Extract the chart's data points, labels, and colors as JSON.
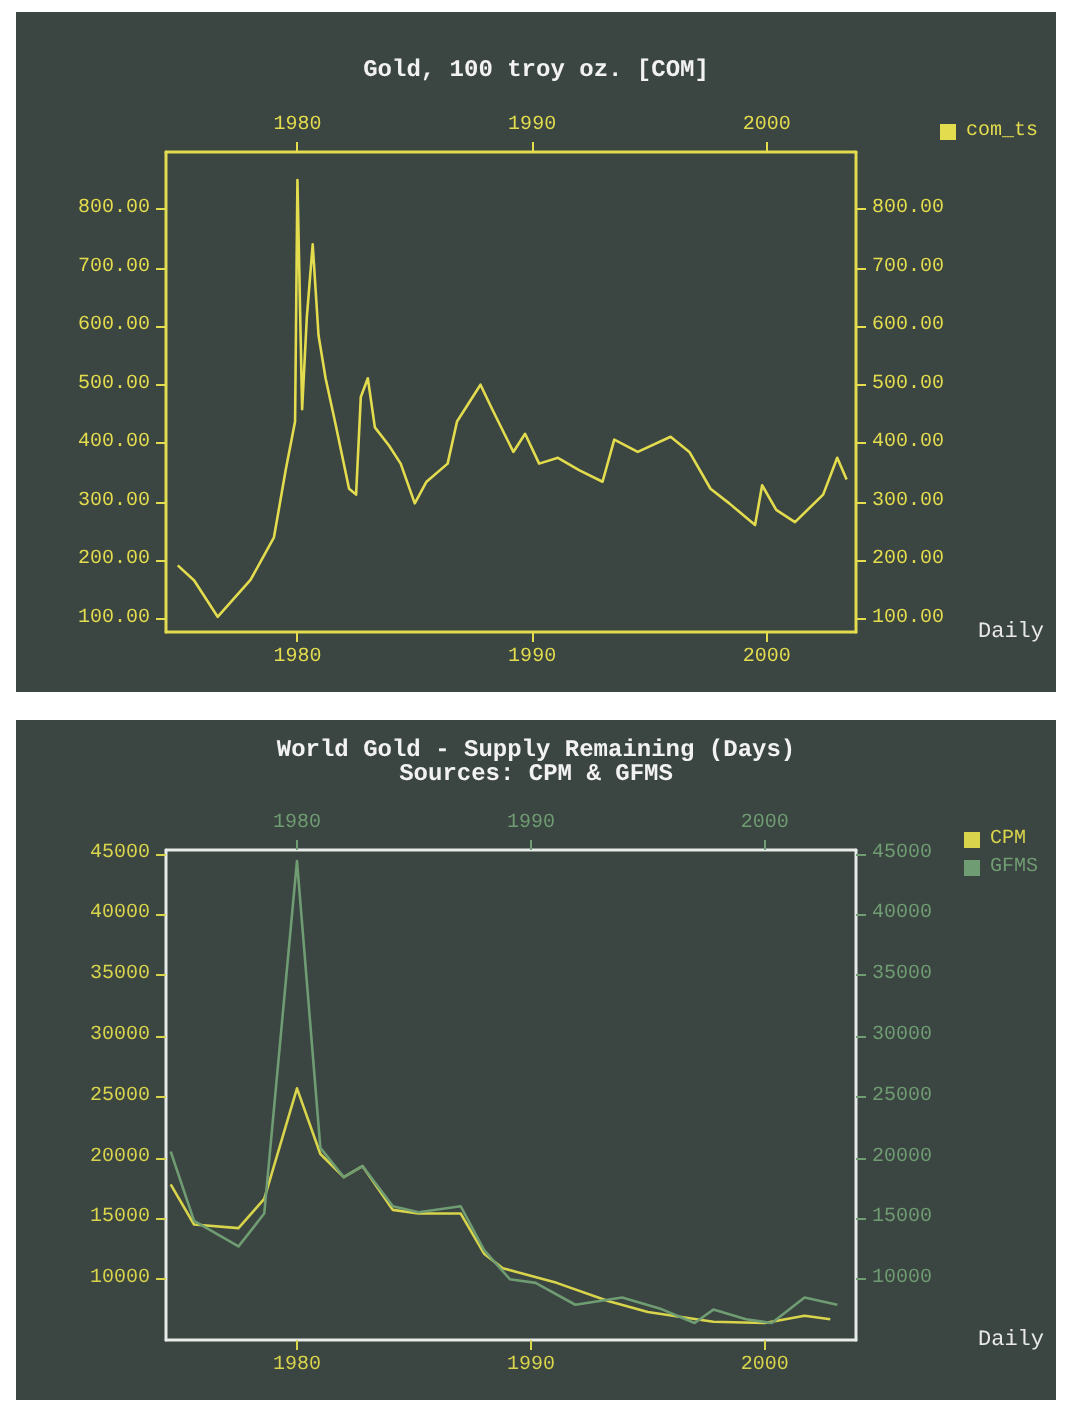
{
  "chart_data": [
    {
      "type": "line",
      "title": "Gold, 100 troy oz. [COM]",
      "marker": "none",
      "legend": "top right",
      "xlim": [
        1974.4,
        2003.8
      ],
      "xticks": [
        1980,
        1990,
        2000
      ],
      "x2lim": [
        1974.4,
        2003.8
      ],
      "x2ticks": [
        1980,
        1990,
        2000
      ],
      "ylim": [
        77,
        898
      ],
      "yticks": [
        {
          "value": 100,
          "label": "100.00"
        },
        {
          "value": 200,
          "label": "200.00"
        },
        {
          "value": 300,
          "label": "300.00"
        },
        {
          "value": 400,
          "label": "400.00"
        },
        {
          "value": 500,
          "label": "500.00"
        },
        {
          "value": 600,
          "label": "600.00"
        },
        {
          "value": 700,
          "label": "700.00"
        },
        {
          "value": 800,
          "label": "800.00"
        }
      ],
      "y2lim": [
        77,
        898
      ],
      "y2ticks": [
        {
          "value": 100,
          "label": "100.00"
        },
        {
          "value": 200,
          "label": "200.00"
        },
        {
          "value": 300,
          "label": "300.00"
        },
        {
          "value": 400,
          "label": "400.00"
        },
        {
          "value": 500,
          "label": "500.00"
        },
        {
          "value": 600,
          "label": "600.00"
        },
        {
          "value": 700,
          "label": "700.00"
        },
        {
          "value": 800,
          "label": "800.00"
        }
      ],
      "annotations": [
        "Daily"
      ],
      "series": [
        {
          "name": "com_ts",
          "color": "#e2dc4e",
          "x": [
            1974.9,
            1975.6,
            1976.6,
            1978.0,
            1979.0,
            1979.5,
            1979.9,
            1980.0,
            1980.2,
            1980.4,
            1980.65,
            1980.9,
            1981.2,
            1981.6,
            1982.2,
            1982.5,
            1982.7,
            1983.0,
            1983.3,
            1983.9,
            1984.4,
            1985.0,
            1985.5,
            1986.4,
            1986.8,
            1987.8,
            1988.3,
            1989.2,
            1989.7,
            1990.3,
            1991.1,
            1992.0,
            1993.0,
            1993.5,
            1994.5,
            1995.9,
            1996.7,
            1997.6,
            1998.4,
            1999.5,
            1999.8,
            2000.4,
            2001.2,
            2002.4,
            2003.0,
            2003.4
          ],
          "values": [
            191,
            165,
            103,
            166,
            239,
            354,
            437,
            850,
            458,
            615,
            740,
            584,
            511,
            437,
            322,
            312,
            479,
            511,
            427,
            396,
            365,
            297,
            334,
            365,
            437,
            500,
            458,
            385,
            416,
            365,
            375,
            354,
            334,
            406,
            385,
            411,
            385,
            322,
            297,
            260,
            328,
            286,
            265,
            312,
            375,
            338
          ]
        }
      ]
    },
    {
      "type": "line",
      "title": "World Gold - Supply Remaining (Days)",
      "subtitle": "Sources: CPM & GFMS",
      "marker": "none",
      "legend": "top right",
      "xlim": [
        1974.4,
        2003.9
      ],
      "xticks": [
        1980,
        1990,
        2000
      ],
      "x2lim": [
        1974.4,
        2003.9
      ],
      "x2ticks": [
        1980,
        1990,
        2000
      ],
      "ylim": [
        5000,
        45300
      ],
      "yticks": [
        10000,
        15000,
        20000,
        25000,
        30000,
        35000,
        40000,
        45000
      ],
      "y2lim": [
        5000,
        45300
      ],
      "y2ticks": [
        10000,
        15000,
        20000,
        25000,
        30000,
        35000,
        40000,
        45000
      ],
      "annotations": [
        "Daily"
      ],
      "series": [
        {
          "name": "CPM",
          "color": "#d8d44c",
          "x": [
            1974.6,
            1975.6,
            1977.5,
            1978.6,
            1980.0,
            1981.0,
            1982.0,
            1982.8,
            1984.1,
            1985.2,
            1987.0,
            1988.0,
            1988.8,
            1991.1,
            1993.3,
            1995.0,
            1997.8,
            2000.0,
            2001.7,
            2002.8
          ],
          "values": [
            17800,
            14500,
            14200,
            16600,
            25700,
            20300,
            18400,
            19300,
            15700,
            15400,
            15400,
            12100,
            10900,
            9700,
            8200,
            7300,
            6500,
            6400,
            7000,
            6700
          ]
        },
        {
          "name": "GFMS",
          "color": "#6f9c72",
          "axis": "y2",
          "x": [
            1974.6,
            1975.6,
            1977.5,
            1978.6,
            1980.0,
            1981.0,
            1982.0,
            1982.8,
            1984.1,
            1985.2,
            1987.0,
            1988.0,
            1989.1,
            1990.2,
            1991.9,
            1993.9,
            1995.5,
            1997.0,
            1997.8,
            1999.2,
            2000.3,
            2001.7,
            2003.1
          ],
          "values": [
            20500,
            14800,
            12700,
            15400,
            44400,
            20800,
            18400,
            19300,
            16000,
            15500,
            16000,
            12400,
            10000,
            9700,
            7900,
            8500,
            7600,
            6400,
            7500,
            6700,
            6400,
            8500,
            7900
          ]
        }
      ]
    }
  ]
}
